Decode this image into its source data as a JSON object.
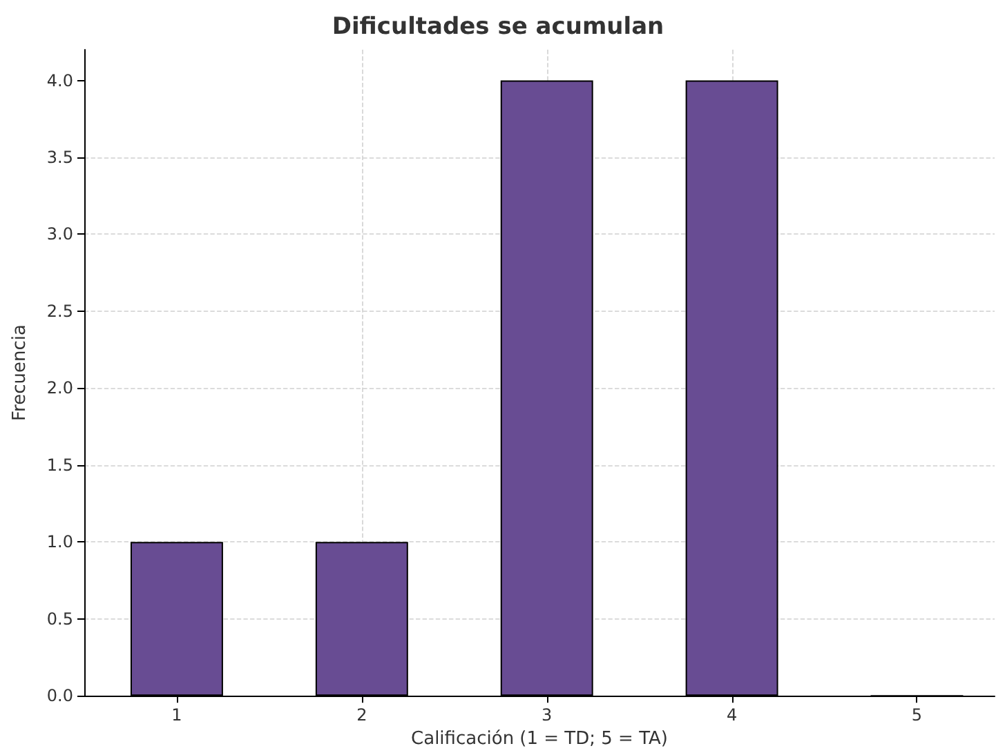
{
  "chart_data": {
    "type": "bar",
    "title": "Dificultades se acumulan",
    "xlabel": "Calificación (1 = TD; 5 = TA)",
    "ylabel": "Frecuencia",
    "x": [
      1,
      2,
      3,
      4,
      5
    ],
    "values": [
      1,
      1,
      4,
      4,
      0
    ],
    "color": "#684c93",
    "xlim": [
      0.5,
      5.42
    ],
    "xticks": [
      1,
      2,
      3,
      4,
      5
    ],
    "ylim": [
      0,
      4.2
    ],
    "yticks": [
      {
        "value": 0,
        "label": "0.0"
      },
      {
        "value": 0.5,
        "label": "0.5"
      },
      {
        "value": 1,
        "label": "1.0"
      },
      {
        "value": 1.5,
        "label": "1.5"
      },
      {
        "value": 2,
        "label": "2.0"
      },
      {
        "value": 2.5,
        "label": "2.5"
      },
      {
        "value": 3,
        "label": "3.0"
      },
      {
        "value": 3.5,
        "label": "3.5"
      },
      {
        "value": 4,
        "label": "4.0"
      }
    ],
    "grid": true
  }
}
